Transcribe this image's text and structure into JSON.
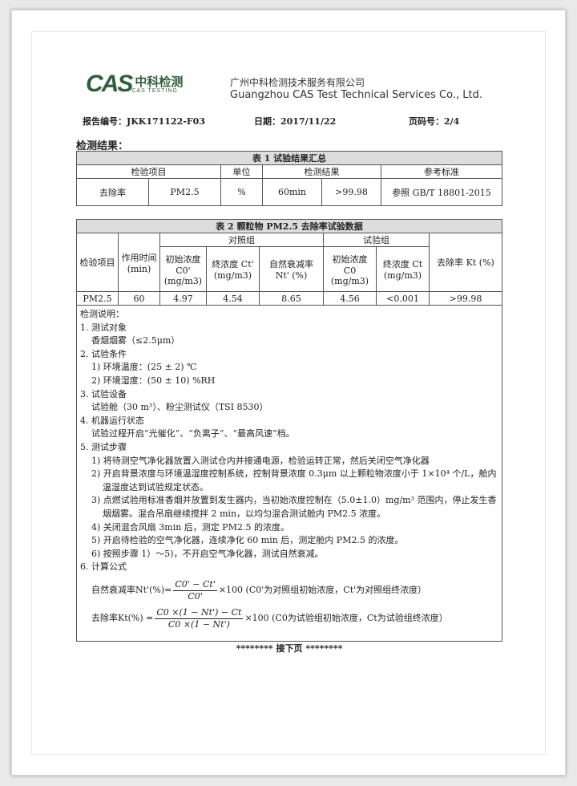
{
  "header": {
    "logo_text": "CAS",
    "logo_cn": "中科检测",
    "logo_en": "CAS TESTING",
    "company_cn": "广州中科检测技术服务有限公司",
    "company_en": "Guangzhou CAS Test Technical Services Co., Ltd."
  },
  "meta": {
    "report_no": "报告编号：JKK171122-F03",
    "date": "日期：2017/11/22",
    "page": "页码号：2/4"
  },
  "section_title": "检测结果：",
  "table1": {
    "caption": "表 1  试验结果汇总",
    "headers": [
      "检验项目",
      "单位",
      "检测结果",
      "参考标准"
    ],
    "row": [
      "去除率",
      "PM2.5",
      "%",
      "60min",
      ">99.98",
      "参照 GB/T 18801-2015"
    ]
  },
  "table2": {
    "caption": "表 2  颗粒物 PM2.5 去除率试验数据",
    "h_item": "检验项目",
    "h_time": "作用时间(min)",
    "h_control": "对照组",
    "h_test": "试验组",
    "h_rate": "去除率 Kt (%)",
    "sub": [
      "初始浓度 C0' (mg/m3)",
      "终浓度 Ct' (mg/m3)",
      "自然衰减率 Nt' (%)",
      "初始浓度 C0 (mg/m3)",
      "终浓度 Ct (mg/m3)"
    ],
    "row": [
      "PM2.5",
      "60",
      "4.97",
      "4.54",
      "8.65",
      "4.56",
      "<0.001",
      ">99.98"
    ]
  },
  "notes": {
    "title": "检测说明：",
    "lines": [
      "1.  测试对象",
      "香烟烟雾（≤2.5μm）",
      "2.  试验条件",
      "1) 环境温度：(25 ± 2) ℃",
      "2) 环境湿度：(50 ± 10) %RH",
      "3.  试验设备",
      "试验舱（30 m³）、粉尘测试仪（TSI 8530）",
      "4.  机器运行状态",
      "试验过程开启“光催化”、“负离子”、“最高风速”档。",
      "5.  测试步骤",
      "1) 将待测空气净化器放置入测试仓内并接通电源，检验运转正常，然后关闭空气净化器",
      "2) 开启背景浓度与环境温湿度控制系统，控制背景浓度 0.3μm 以上颗粒物浓度小于 1×10⁴ 个/L，舱内温湿度达到试验规定状态。",
      "3) 点燃试验用标准香烟并放置到发生器内，当初始浓度控制在（5.0±1.0）mg/m³ 范围内，停止发生香烟烟雾。混合吊扇继续搅拌 2 min，以均匀混合测试舱内 PM2.5 浓度。",
      "4) 关闭混合风扇 3min 后，测定 PM2.5 的浓度。",
      "5) 开启待检验的空气净化器，连续净化 60 min 后，测定舱内 PM2.5 的浓度。",
      "6) 按照步骤 1）～5)，不开启空气净化器，测试自然衰减。",
      "6.  计算公式"
    ],
    "f1": {
      "lhs": "自然衰减率Nt'(%)=",
      "num": "C0' − Ct'",
      "den": "C0'",
      "rhs": "×100 (C0'为对照组初始浓度，Ct'为对照组终浓度）"
    },
    "f2": {
      "lhs": "去除率Kt(%) =",
      "num": "C0 ×(1 − Nt') − Ct",
      "den": "C0 ×(1 − Nt')",
      "rhs": "×100 (C0为试验组初始浓度，Ct为试验组终浓度）"
    }
  },
  "footer": "********  接下页  ********"
}
